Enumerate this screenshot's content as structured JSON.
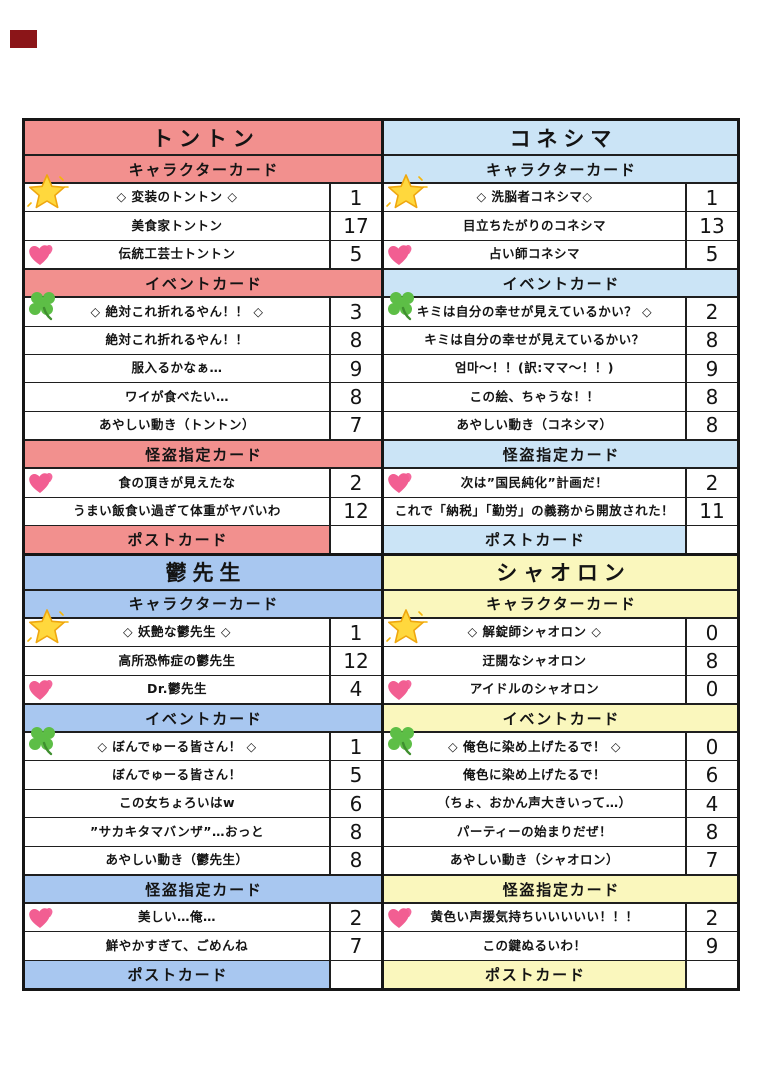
{
  "marker": {
    "color": "#8B1518"
  },
  "colors": {
    "tonton_pink": "#F2908E",
    "koneshima_lightblue": "#CBE4F6",
    "utsu_blue": "#A8C7F0",
    "shaoron_yellow": "#FAF7BD",
    "border": "#161616"
  },
  "quadrants": [
    {
      "id": "tonton",
      "title": "トントン",
      "color": "#F2908E",
      "sections": [
        {
          "label": "キャラクターカード",
          "rows": [
            {
              "icon": "star",
              "name": "◇ 変装のトントン ◇",
              "count": "1"
            },
            {
              "name": "美食家トントン",
              "count": "17"
            },
            {
              "icon": "hearts",
              "name": "伝統工芸士トントン",
              "count": "5"
            }
          ]
        },
        {
          "label": "イベントカード",
          "rows": [
            {
              "icon": "clover",
              "name": "◇ 絶対これ折れるやん！！ ◇",
              "count": "3"
            },
            {
              "name": "絶対これ折れるやん！！",
              "count": "8"
            },
            {
              "name": "服入るかなぁ…",
              "count": "9"
            },
            {
              "name": "ワイが食べたい…",
              "count": "8"
            },
            {
              "name": "あやしい動き（トントン）",
              "count": "7"
            }
          ]
        },
        {
          "label": "怪盗指定カード",
          "rows": [
            {
              "icon": "hearts",
              "name": "食の頂きが見えたな",
              "count": "2"
            },
            {
              "name": "うまい飯食い過ぎて体重がヤバいわ",
              "count": "12"
            }
          ]
        },
        {
          "label": "ポストカード",
          "postcard": true,
          "rows": []
        }
      ]
    },
    {
      "id": "koneshima",
      "title": "コネシマ",
      "color": "#CBE4F6",
      "sections": [
        {
          "label": "キャラクターカード",
          "rows": [
            {
              "icon": "star",
              "name": "◇ 洗脳者コネシマ◇",
              "count": "1"
            },
            {
              "name": "目立ちたがりのコネシマ",
              "count": "13"
            },
            {
              "icon": "hearts",
              "name": "占い師コネシマ",
              "count": "5"
            }
          ]
        },
        {
          "label": "イベントカード",
          "rows": [
            {
              "icon": "clover",
              "name": "キミは自分の幸せが見えているかい？ ◇",
              "count": "2"
            },
            {
              "name": "キミは自分の幸せが見えているかい？",
              "count": "8"
            },
            {
              "name": "엄마～！！(訳:ママ～！！)",
              "count": "9"
            },
            {
              "name": "この絵、ちゃうな！！",
              "count": "8"
            },
            {
              "name": "あやしい動き（コネシマ）",
              "count": "8"
            }
          ]
        },
        {
          "label": "怪盗指定カード",
          "rows": [
            {
              "icon": "hearts",
              "name": "次は”国民純化”計画だ！",
              "count": "2"
            },
            {
              "name": "これで「納税」「勤労」の義務から開放された！",
              "count": "11"
            }
          ]
        },
        {
          "label": "ポストカード",
          "postcard": true,
          "rows": []
        }
      ]
    },
    {
      "id": "utsu-sensei",
      "title": "鬱先生",
      "color": "#A8C7F0",
      "sections": [
        {
          "label": "キャラクターカード",
          "rows": [
            {
              "icon": "star",
              "name": "◇ 妖艶な鬱先生 ◇",
              "count": "1"
            },
            {
              "name": "高所恐怖症の鬱先生",
              "count": "12"
            },
            {
              "icon": "hearts",
              "name": "Dr.鬱先生",
              "count": "4"
            }
          ]
        },
        {
          "label": "イベントカード",
          "rows": [
            {
              "icon": "clover",
              "name": "◇ ぼんでゅーる皆さん！ ◇",
              "count": "1"
            },
            {
              "name": "ぼんでゅーる皆さん！",
              "count": "5"
            },
            {
              "name": "この女ちょろいはw",
              "count": "6"
            },
            {
              "name": "”サカキタマバンザ”…おっと",
              "count": "8"
            },
            {
              "name": "あやしい動き（鬱先生）",
              "count": "8"
            }
          ]
        },
        {
          "label": "怪盗指定カード",
          "rows": [
            {
              "icon": "hearts",
              "name": "美しい…俺…",
              "count": "2"
            },
            {
              "name": "鮮やかすぎて、ごめんね",
              "count": "7"
            }
          ]
        },
        {
          "label": "ポストカード",
          "postcard": true,
          "rows": []
        }
      ]
    },
    {
      "id": "shaoron",
      "title": "シャオロン",
      "color": "#FAF7BD",
      "sections": [
        {
          "label": "キャラクターカード",
          "rows": [
            {
              "icon": "star",
              "name": "◇ 解錠師シャオロン ◇",
              "count": "0"
            },
            {
              "name": "迂闊なシャオロン",
              "count": "8"
            },
            {
              "icon": "hearts",
              "name": "アイドルのシャオロン",
              "count": "0"
            }
          ]
        },
        {
          "label": "イベントカード",
          "rows": [
            {
              "icon": "clover",
              "name": "◇ 俺色に染め上げたるで！ ◇",
              "count": "0"
            },
            {
              "name": "俺色に染め上げたるで！",
              "count": "6"
            },
            {
              "name": "（ちょ、おかん声大きいって…）",
              "count": "4"
            },
            {
              "name": "パーティーの始まりだぜ！",
              "count": "8"
            },
            {
              "name": "あやしい動き（シャオロン）",
              "count": "7"
            }
          ]
        },
        {
          "label": "怪盗指定カード",
          "rows": [
            {
              "icon": "hearts",
              "name": "黄色い声援気持ちいいいいい！！！",
              "count": "2"
            },
            {
              "name": "この鍵ぬるいわ！",
              "count": "9"
            }
          ]
        },
        {
          "label": "ポストカード",
          "postcard": true,
          "rows": []
        }
      ]
    }
  ]
}
